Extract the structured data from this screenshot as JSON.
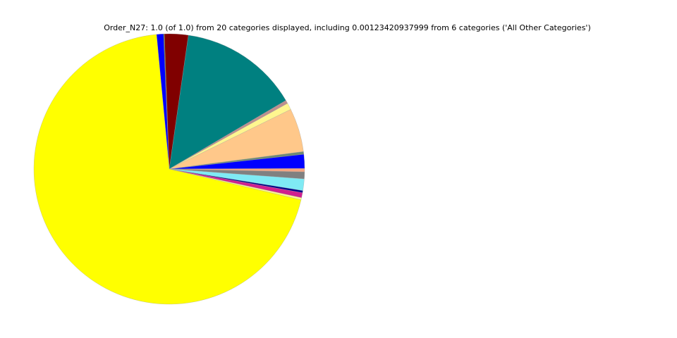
{
  "chart_data": {
    "type": "pie",
    "title": "Order_N27: 1.0 (of 1.0) from 20 categories displayed, including 0.00123420937999 from 6 categories ('All Other Categories')",
    "direction": "clockwise from top",
    "slices": [
      {
        "value": 0.0083,
        "color": "#0000ff"
      },
      {
        "value": 0.001,
        "color": "#556b2f"
      },
      {
        "value": 0.0283,
        "color": "#800000"
      },
      {
        "value": 0.1425,
        "color": "#008080"
      },
      {
        "value": 0.004,
        "color": "#bc8f8f"
      },
      {
        "value": 0.008,
        "color": "#fff68f"
      },
      {
        "value": 0.052,
        "color": "#ffc88a"
      },
      {
        "value": 0.0033,
        "color": "#6e8b74"
      },
      {
        "value": 0.0167,
        "color": "#0000ff"
      },
      {
        "value": 0.004,
        "color": "#f4a582"
      },
      {
        "value": 0.0083,
        "color": "#808080"
      },
      {
        "value": 0.0139,
        "color": "#7feaf4"
      },
      {
        "value": 0.0025,
        "color": "#00008b"
      },
      {
        "value": 0.006,
        "color": "#d0208f"
      },
      {
        "value": 0.0025,
        "color": "#fff68f"
      },
      {
        "value": 0.6975,
        "color": "#ffff00"
      }
    ],
    "start_angle_deg_clockwise_from_top": -5.4,
    "legend": "none"
  }
}
